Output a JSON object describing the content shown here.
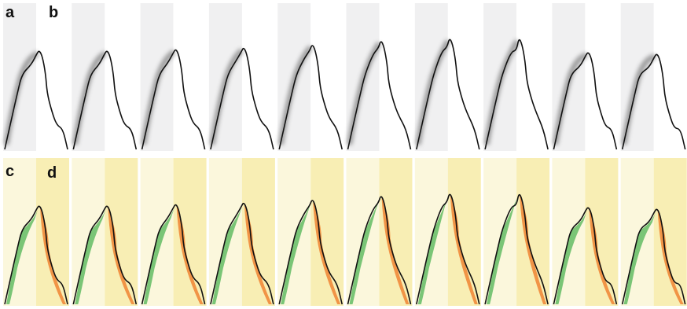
{
  "figure": {
    "panel_labels": {
      "a": "a",
      "b": "b",
      "c": "c",
      "d": "d"
    },
    "frame_count": 10,
    "row_top": {
      "description_shown": false
    },
    "row_bottom": {
      "description_shown": false
    }
  },
  "colors": {
    "top_left_band": "#f0f0f1",
    "top_right_band": "#ffffff",
    "bottom_left_band": "#fbf7dc",
    "bottom_right_band": "#f8eeb4",
    "outline": "#111111",
    "shadow": "#555555",
    "green_region": "#6cbf6a",
    "orange_region": "#f08a3a"
  },
  "icons": {}
}
